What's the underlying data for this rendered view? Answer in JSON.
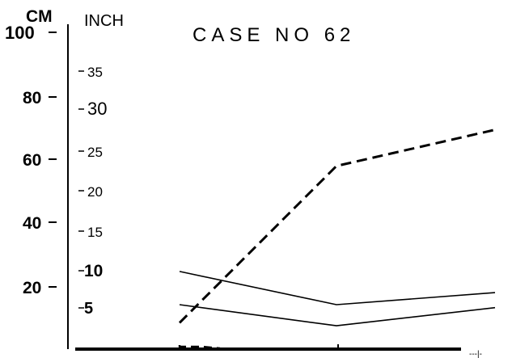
{
  "chart_data": {
    "type": "line",
    "title": "CASE NO 62",
    "units": {
      "left": "CM",
      "right": "INCH"
    },
    "cm_ticks": [
      "100",
      "80",
      "60",
      "40",
      "20"
    ],
    "inch_ticks": [
      "35",
      "30",
      "25",
      "20",
      "15",
      "10",
      "5"
    ],
    "x": [
      0,
      1,
      2
    ],
    "ylim_cm": [
      0,
      100
    ],
    "grid": false,
    "series": [
      {
        "style": "dashed",
        "values": [
          5,
          57,
          69
        ]
      },
      {
        "style": "solid",
        "values": [
          22,
          11,
          15
        ]
      },
      {
        "style": "solid",
        "values": [
          11,
          4,
          10
        ]
      }
    ],
    "below_axis_fragment": {
      "style": "dashed",
      "values": [
        0.8,
        0.2
      ]
    },
    "tail_mark": "---|-"
  }
}
